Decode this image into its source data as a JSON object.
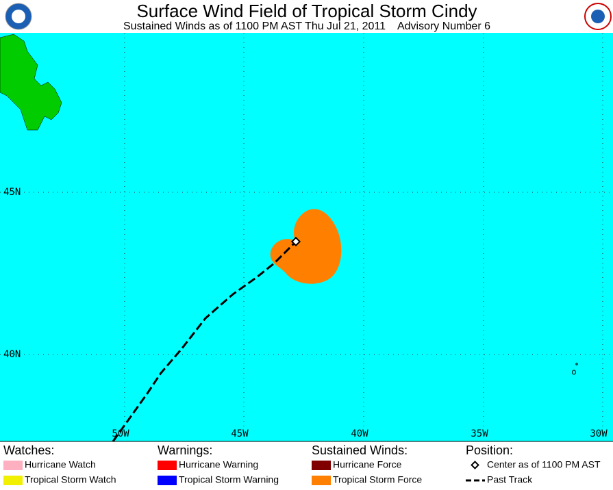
{
  "header": {
    "title": "Surface Wind Field of Tropical Storm Cindy",
    "subtitle": "Sustained Winds as of 1100 PM AST Thu Jul 21, 2011    Advisory Number 6"
  },
  "map": {
    "lat_labels": [
      "45N",
      "40N"
    ],
    "lon_labels": [
      "50W",
      "45W",
      "40W",
      "35W",
      "30W"
    ]
  },
  "legend": {
    "watches": {
      "title": "Watches:",
      "items": [
        "Hurricane Watch",
        "Tropical Storm Watch"
      ]
    },
    "warnings": {
      "title": "Warnings:",
      "items": [
        "Hurricane Warning",
        "Tropical Storm Warning"
      ]
    },
    "winds": {
      "title": "Sustained Winds:",
      "items": [
        "Hurricane Force",
        "Tropical Storm Force"
      ]
    },
    "position": {
      "title": "Position:",
      "items": [
        "Center as of 1100 PM AST",
        "Past Track"
      ]
    }
  }
}
